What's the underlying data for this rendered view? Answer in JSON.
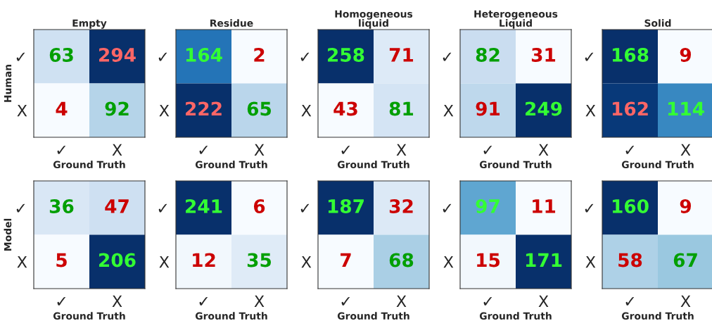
{
  "chart_data": [
    {
      "type": "heatmap",
      "title": "Empty",
      "ylabel": "Human",
      "xlabel": "Ground Truth",
      "categories": [
        "✓",
        "X"
      ],
      "y_categories": [
        "✓",
        "X"
      ],
      "cells": [
        [
          63,
          294
        ],
        [
          4,
          92
        ]
      ],
      "data_labels": true
    },
    {
      "type": "heatmap",
      "title": "Residue",
      "xlabel": "Ground Truth",
      "categories": [
        "✓",
        "X"
      ],
      "y_categories": [
        "✓",
        "X"
      ],
      "cells": [
        [
          164,
          2
        ],
        [
          222,
          65
        ]
      ],
      "data_labels": true
    },
    {
      "type": "heatmap",
      "title": "Homogeneous\nliquid",
      "xlabel": "Ground Truth",
      "categories": [
        "✓",
        "X"
      ],
      "y_categories": [
        "✓",
        "X"
      ],
      "cells": [
        [
          258,
          71
        ],
        [
          43,
          81
        ]
      ],
      "data_labels": true
    },
    {
      "type": "heatmap",
      "title": "Heterogeneous\nLiquid",
      "xlabel": "Ground Truth",
      "categories": [
        "✓",
        "X"
      ],
      "y_categories": [
        "✓",
        "X"
      ],
      "cells": [
        [
          82,
          31
        ],
        [
          91,
          249
        ]
      ],
      "data_labels": true
    },
    {
      "type": "heatmap",
      "title": "Solid",
      "xlabel": "Ground Truth",
      "categories": [
        "✓",
        "X"
      ],
      "y_categories": [
        "✓",
        "X"
      ],
      "cells": [
        [
          168,
          9
        ],
        [
          162,
          114
        ]
      ],
      "data_labels": true
    },
    {
      "type": "heatmap",
      "ylabel": "Model",
      "xlabel": "Ground Truth",
      "categories": [
        "✓",
        "X"
      ],
      "y_categories": [
        "✓",
        "X"
      ],
      "cells": [
        [
          36,
          47
        ],
        [
          5,
          206
        ]
      ],
      "data_labels": true
    },
    {
      "type": "heatmap",
      "xlabel": "Ground Truth",
      "categories": [
        "✓",
        "X"
      ],
      "y_categories": [
        "✓",
        "X"
      ],
      "cells": [
        [
          241,
          6
        ],
        [
          12,
          35
        ]
      ],
      "data_labels": true
    },
    {
      "type": "heatmap",
      "xlabel": "Ground Truth",
      "categories": [
        "✓",
        "X"
      ],
      "y_categories": [
        "✓",
        "X"
      ],
      "cells": [
        [
          187,
          32
        ],
        [
          7,
          68
        ]
      ],
      "data_labels": true
    },
    {
      "type": "heatmap",
      "xlabel": "Ground Truth",
      "categories": [
        "✓",
        "X"
      ],
      "y_categories": [
        "✓",
        "X"
      ],
      "cells": [
        [
          97,
          11
        ],
        [
          15,
          171
        ]
      ],
      "data_labels": true
    },
    {
      "type": "heatmap",
      "xlabel": "Ground Truth",
      "categories": [
        "✓",
        "X"
      ],
      "y_categories": [
        "✓",
        "X"
      ],
      "cells": [
        [
          160,
          9
        ],
        [
          58,
          67
        ]
      ],
      "data_labels": true
    }
  ]
}
